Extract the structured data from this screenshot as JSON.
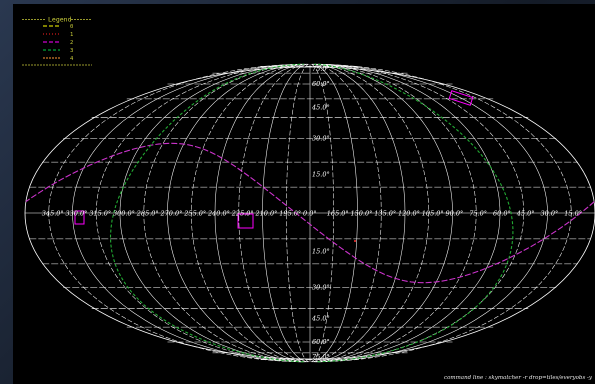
{
  "legend": {
    "title": "Legend",
    "entries": [
      {
        "label": "0",
        "color": "#ffff00",
        "dash": "4,2"
      },
      {
        "label": "1",
        "color": "#ff2020",
        "dash": "1,2"
      },
      {
        "label": "2",
        "color": "#ff00ff",
        "dash": "4,2"
      },
      {
        "label": "3",
        "color": "#00cc44",
        "dash": "3,2"
      },
      {
        "label": "4",
        "color": "#ff9933",
        "dash": "2,1"
      }
    ]
  },
  "ra_labels": [
    "345.0°",
    "330.0°",
    "315.0°",
    "300.0°",
    "285.0°",
    "270.0°",
    "255.0°",
    "240.0°",
    "225.0°",
    "210.0°",
    "195.0°",
    "0.0°",
    "165.0°",
    "150.0°",
    "135.0°",
    "120.0°",
    "105.0°",
    "90.0°",
    "75.0°",
    "60.0°",
    "45.0°",
    "30.0°",
    "15.0°"
  ],
  "dec_labels": [
    {
      "text": "75.0°",
      "dec": 75
    },
    {
      "text": "60.0°",
      "dec": 60
    },
    {
      "text": "45.0°",
      "dec": 45
    },
    {
      "text": "30.0°",
      "dec": 30
    },
    {
      "text": "15.0°",
      "dec": 15
    },
    {
      "text": "15.0°",
      "dec": -15
    },
    {
      "text": "30.0°",
      "dec": -30
    },
    {
      "text": "45.0°",
      "dec": -45
    },
    {
      "text": "60.0°",
      "dec": -60
    },
    {
      "text": "75.0°",
      "dec": -75
    }
  ],
  "colors": {
    "grid": "#ffffff",
    "galactic_plane": "#cc33cc",
    "ecliptic": "#22aa33",
    "footprint": "#ff00ff",
    "legend_text": "#c9cc3a"
  },
  "command_line": "command line : skymatcher -r drop=tiles/everyobs -y"
}
